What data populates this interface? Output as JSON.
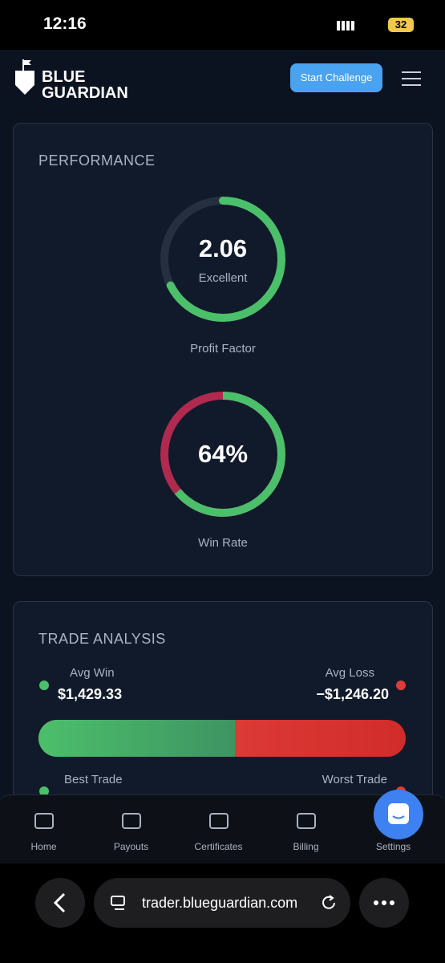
{
  "status_bar": {
    "time": "12:16",
    "battery": "32"
  },
  "header": {
    "logo_line1": "BLUE",
    "logo_line2": "GUARDIAN",
    "button": "Start Challenge"
  },
  "performance": {
    "title": "PERFORMANCE",
    "profit_factor": {
      "value": "2.06",
      "rating": "Excellent",
      "label": "Profit Factor"
    },
    "win_rate": {
      "value": 64,
      "value_label": "64%",
      "label": "Win Rate"
    }
  },
  "trade_analysis": {
    "title": "TRADE ANALYSIS",
    "avg_win": {
      "label": "Avg Win",
      "value": 1429.33,
      "value_label": "$1,429.33"
    },
    "avg_loss": {
      "label": "Avg Loss",
      "value": -1246.2,
      "value_label": "−$1,246.20"
    },
    "best_trade": {
      "label": "Best Trade"
    },
    "worst_trade": {
      "label": "Worst Trade"
    }
  },
  "nav": [
    "Home",
    "Payouts",
    "Certificates",
    "Billing",
    "Settings"
  ],
  "browser": {
    "url": "trader.blueguardian.com"
  }
}
